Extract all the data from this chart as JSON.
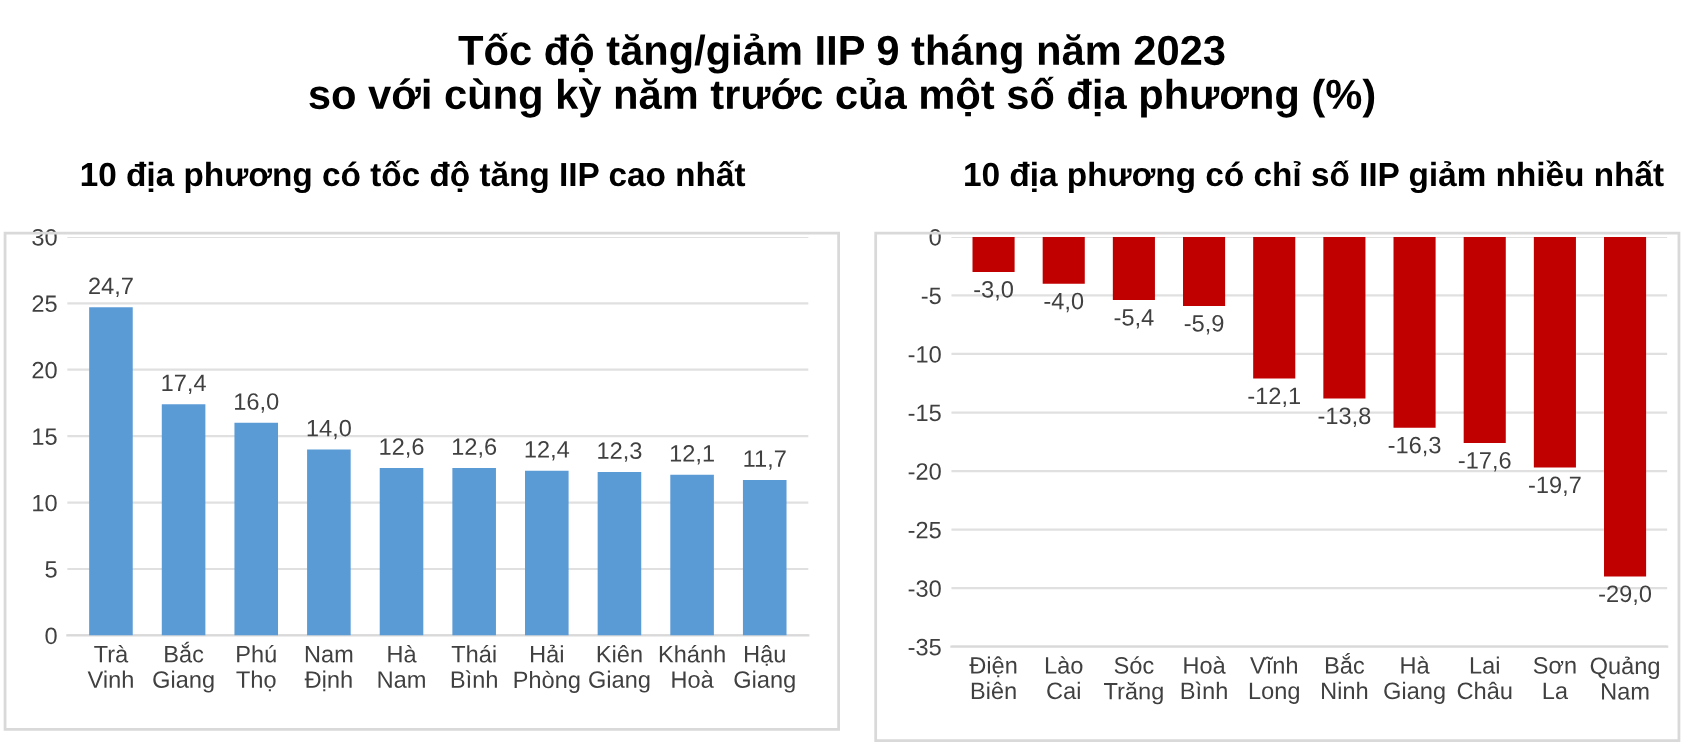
{
  "chart_data": [
    {
      "type": "bar",
      "title": "10 địa phương có tốc độ tăng IIP cao nhất",
      "annotations": [
        "Tốc độ tăng/giảm IIP 9 tháng năm 2023\nso với cùng kỳ năm trước của một số địa phương (%)"
      ],
      "categories": [
        "Trà\nVinh",
        "Bắc\nGiang",
        "Phú\nThọ",
        "Nam\nĐịnh",
        "Hà\nNam",
        "Thái\nBình",
        "Hải\nPhòng",
        "Kiên\nGiang",
        "Khánh\nHoà",
        "Hậu\nGiang"
      ],
      "values": [
        24.7,
        17.4,
        16.0,
        14.0,
        12.6,
        12.6,
        12.4,
        12.3,
        12.1,
        11.7
      ],
      "value_labels": [
        "24,7",
        "17,4",
        "16,0",
        "14,0",
        "12,6",
        "12,6",
        "12,4",
        "12,3",
        "12,1",
        "11,7"
      ],
      "color": "#5b9bd5",
      "ylim": [
        0,
        30
      ],
      "yticks": [
        0,
        5,
        10,
        15,
        20,
        25,
        30
      ],
      "grid": "y",
      "legend": false
    },
    {
      "type": "bar",
      "title": "10 địa phương có chỉ số IIP giảm nhiều nhất",
      "categories": [
        "Điện\nBiên",
        "Lào\nCai",
        "Sóc\nTrăng",
        "Hoà\nBình",
        "Vĩnh\nLong",
        "Bắc\nNinh",
        "Hà\nGiang",
        "Lai\nChâu",
        "Sơn\nLa",
        "Quảng\nNam"
      ],
      "values": [
        -3.0,
        -4.0,
        -5.4,
        -5.9,
        -12.1,
        -13.8,
        -16.3,
        -17.6,
        -19.7,
        -29.0
      ],
      "value_labels": [
        "-3,0",
        "-4,0",
        "-5,4",
        "-5,9",
        "-12,1",
        "-13,8",
        "-16,3",
        "-17,6",
        "-19,7",
        "-29,0"
      ],
      "color": "#c00000",
      "ylim": [
        -35,
        0
      ],
      "yticks": [
        {
          "value": -35,
          "label": "-35"
        },
        {
          "value": -30,
          "label": "-30"
        },
        {
          "value": -25,
          "label": "-25"
        },
        {
          "value": -20,
          "label": "-20"
        },
        {
          "value": -15,
          "label": "-15"
        },
        {
          "value": -10,
          "label": "-10"
        },
        {
          "value": -5,
          "label": "-5"
        },
        0
      ],
      "grid": "y",
      "legend": false
    }
  ]
}
